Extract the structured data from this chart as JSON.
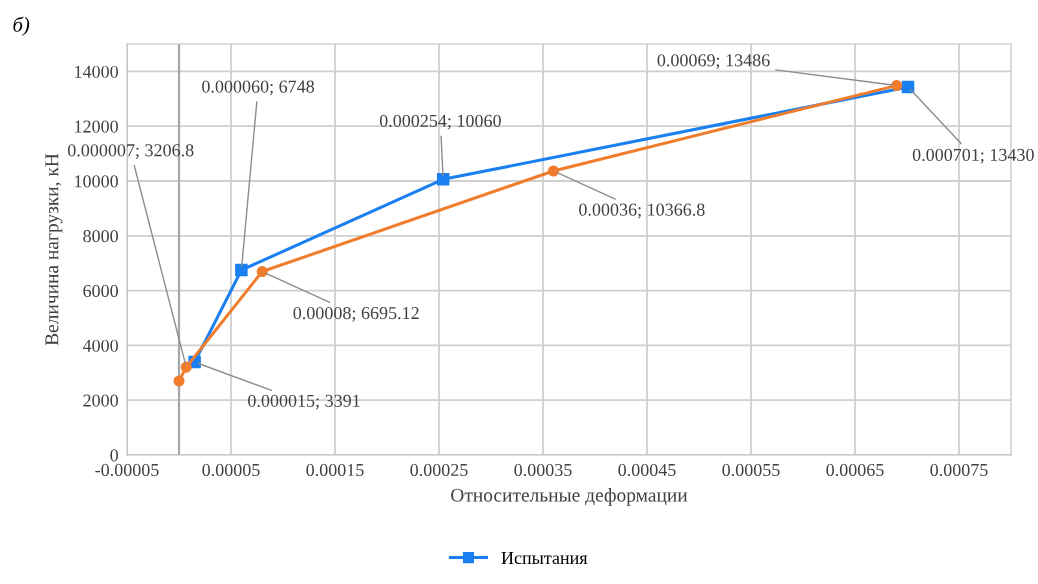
{
  "chart_data": {
    "type": "line",
    "title": "б)",
    "xlabel": "Относительные деформации",
    "ylabel": "Величина нагрузки, кН",
    "xlim": [
      -5e-05,
      0.0008
    ],
    "xticks": [
      {
        "value": -5e-05,
        "label": "-0.00005"
      },
      {
        "value": 5e-05,
        "label": "0.00005"
      },
      {
        "value": 0.00015,
        "label": "0.00015"
      },
      {
        "value": 0.00025,
        "label": "0.00025"
      },
      {
        "value": 0.00035,
        "label": "0.00035"
      },
      {
        "value": 0.00045,
        "label": "0.00045"
      },
      {
        "value": 0.00055,
        "label": "0.00055"
      },
      {
        "value": 0.00065,
        "label": "0.00065"
      },
      {
        "value": 0.00075,
        "label": "0.00075"
      }
    ],
    "ylim": [
      0,
      15000
    ],
    "yticks": [
      0,
      2000,
      4000,
      6000,
      8000,
      10000,
      12000,
      14000
    ],
    "grid": true,
    "legend": "bottom",
    "ref_lines": [
      {
        "axis": "x",
        "value": 0,
        "color": "#a6a6a6"
      }
    ],
    "series": [
      {
        "name": "Испытания",
        "color": "#1a7ff0",
        "marker": "square",
        "x": [
          1.5e-05,
          6e-05,
          0.000254,
          0.000701
        ],
        "values": [
          3391,
          6748,
          10060,
          13430
        ],
        "value_labels": [
          "0.000015; 3391",
          "0.000060; 6748",
          "0.000254; 10060",
          "0.000701; 13430"
        ]
      },
      {
        "color": "#f07d2c",
        "marker": "circle",
        "x": [
          0,
          7e-06,
          8e-05,
          0.00036,
          0.00069
        ],
        "values": [
          2700,
          3206.8,
          6695.12,
          10366.8,
          13486
        ],
        "value_labels": [
          null,
          "0.000007; 3206.8",
          "0.00008; 6695.12",
          "0.00036; 10366.8",
          "0.00069; 13486"
        ]
      }
    ]
  }
}
